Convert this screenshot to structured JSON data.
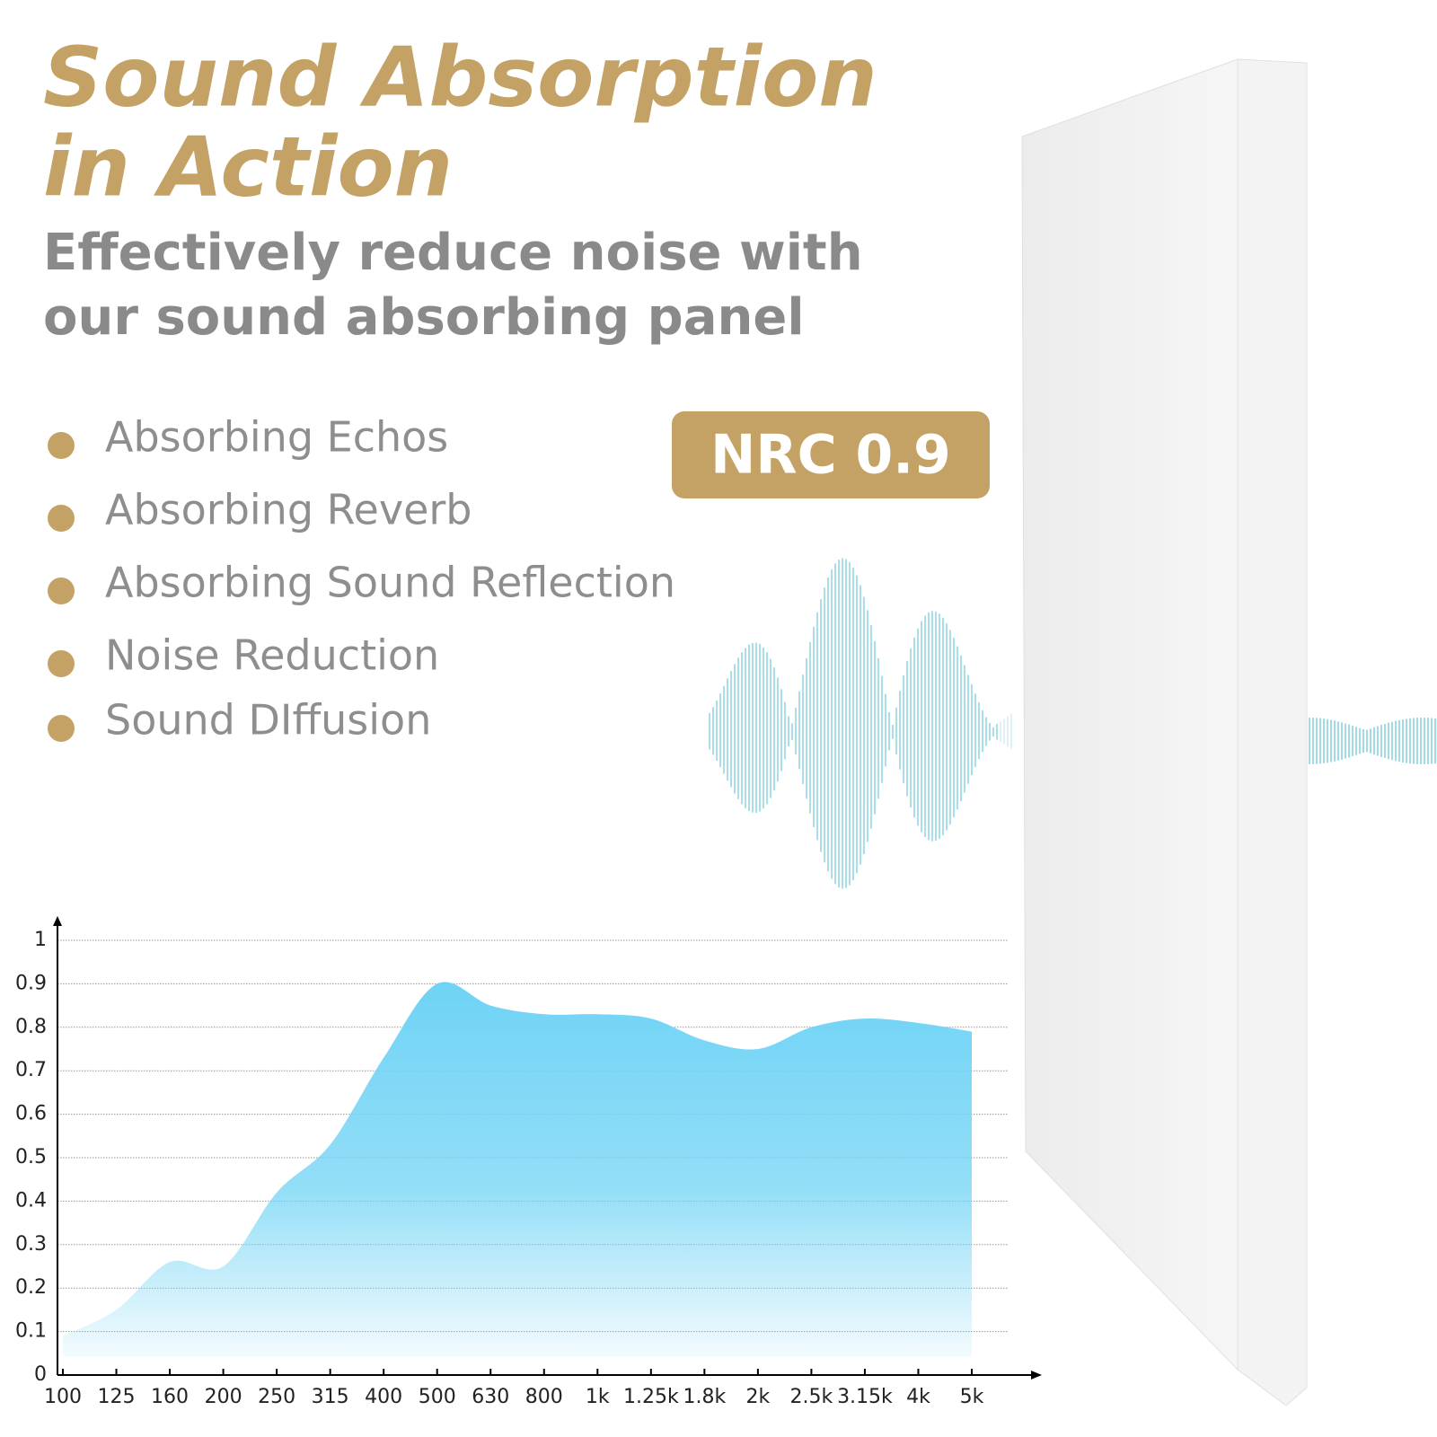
{
  "header": {
    "title": "Sound Absorption",
    "title_line2": "in Action",
    "subtitle_line1": "Effectively reduce noise with",
    "subtitle_line2": "our sound absorbing panel"
  },
  "features": [
    "Absorbing Echos",
    "Absorbing Reverb",
    "Absorbing Sound Reflection",
    "Noise Reduction",
    "Sound DIffusion"
  ],
  "badge": "NRC 0.9",
  "chart_data": {
    "type": "area",
    "categories": [
      "100",
      "125",
      "160",
      "200",
      "250",
      "315",
      "400",
      "500",
      "630",
      "800",
      "1k",
      "1.25k",
      "1.8k",
      "2k",
      "2.5k",
      "3.15k",
      "4k",
      "5k"
    ],
    "values": [
      0.09,
      0.15,
      0.26,
      0.25,
      0.42,
      0.53,
      0.73,
      0.9,
      0.85,
      0.83,
      0.83,
      0.82,
      0.77,
      0.75,
      0.8,
      0.82,
      0.81,
      0.79
    ],
    "color": "#6fd3f5",
    "ylim": [
      0,
      1
    ],
    "yticks": [
      0,
      0.1,
      0.2,
      0.3,
      0.4,
      0.5,
      0.6,
      0.7,
      0.8,
      0.9,
      1
    ],
    "grid": true
  }
}
